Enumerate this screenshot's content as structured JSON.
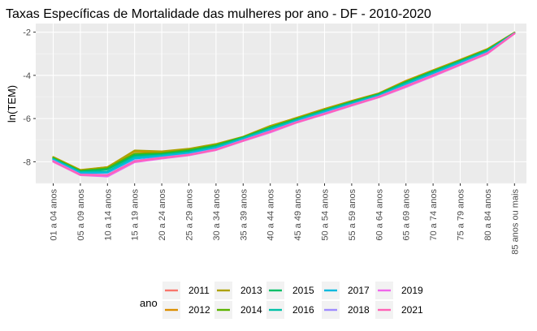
{
  "chart_data": {
    "type": "line",
    "title": "Taxas Específicas de Mortalidade das mulheres por ano - DF - 2010-2020",
    "xlabel": "",
    "ylabel": "ln(TEM)",
    "categories": [
      "01 a 04 anos",
      "05 a 09 anos",
      "10 a 14 anos",
      "15 a 19 anos",
      "20 a 24 anos",
      "25 a 29 anos",
      "30 a 34 anos",
      "35 a 39 anos",
      "40 a 44 anos",
      "45 a 49 anos",
      "50 a 54 anos",
      "55 a 59 anos",
      "60 a 64 anos",
      "65 a 69 anos",
      "70 a 74 anos",
      "75 a 79 anos",
      "80 a 84 anos",
      "85 anos ou mais"
    ],
    "ylim": [
      -9.0,
      -1.6
    ],
    "yticks": [
      -8,
      -6,
      -4,
      -2
    ],
    "grid": true,
    "legend": {
      "title": "ano",
      "position": "bottom"
    },
    "series": [
      {
        "name": "2011",
        "color": "#F8766D",
        "values": [
          -7.85,
          -8.45,
          -8.35,
          -7.7,
          -7.62,
          -7.5,
          -7.25,
          -6.88,
          -6.38,
          -5.98,
          -5.58,
          -5.2,
          -4.85,
          -4.28,
          -3.78,
          -3.3,
          -2.8,
          -2.03
        ]
      },
      {
        "name": "2012",
        "color": "#DB8E00",
        "values": [
          -7.8,
          -8.4,
          -8.25,
          -7.52,
          -7.55,
          -7.42,
          -7.2,
          -6.85,
          -6.35,
          -5.95,
          -5.55,
          -5.18,
          -4.83,
          -4.25,
          -3.76,
          -3.28,
          -2.78,
          -2.02
        ]
      },
      {
        "name": "2013",
        "color": "#AEA200",
        "values": [
          -7.78,
          -8.38,
          -8.25,
          -7.48,
          -7.52,
          -7.4,
          -7.18,
          -6.84,
          -6.34,
          -5.96,
          -5.56,
          -5.19,
          -4.84,
          -4.27,
          -3.77,
          -3.29,
          -2.79,
          -2.02
        ]
      },
      {
        "name": "2014",
        "color": "#5BB300",
        "values": [
          -7.82,
          -8.42,
          -8.3,
          -7.62,
          -7.6,
          -7.45,
          -7.22,
          -6.86,
          -6.4,
          -6.0,
          -5.6,
          -5.22,
          -4.86,
          -4.3,
          -3.8,
          -3.32,
          -2.82,
          -2.03
        ]
      },
      {
        "name": "2015",
        "color": "#00BE67",
        "values": [
          -7.85,
          -8.45,
          -8.35,
          -7.7,
          -7.65,
          -7.5,
          -7.26,
          -6.88,
          -6.42,
          -6.02,
          -5.62,
          -5.24,
          -4.88,
          -4.32,
          -3.82,
          -3.34,
          -2.84,
          -2.04
        ]
      },
      {
        "name": "2016",
        "color": "#00C1A7",
        "values": [
          -7.88,
          -8.48,
          -8.45,
          -7.78,
          -7.7,
          -7.56,
          -7.32,
          -6.92,
          -6.48,
          -6.06,
          -5.66,
          -5.28,
          -4.92,
          -4.38,
          -3.88,
          -3.38,
          -2.88,
          -2.05
        ]
      },
      {
        "name": "2017",
        "color": "#00BADE",
        "values": [
          -7.9,
          -8.52,
          -8.5,
          -7.85,
          -7.74,
          -7.6,
          -7.36,
          -6.96,
          -6.52,
          -6.1,
          -5.7,
          -5.32,
          -4.95,
          -4.42,
          -3.92,
          -3.42,
          -2.92,
          -2.05
        ]
      },
      {
        "name": "2018",
        "color": "#9F8CFF",
        "values": [
          -7.95,
          -8.58,
          -8.6,
          -7.95,
          -7.8,
          -7.66,
          -7.42,
          -7.0,
          -6.58,
          -6.14,
          -5.75,
          -5.36,
          -4.98,
          -4.48,
          -3.98,
          -3.48,
          -2.96,
          -2.06
        ]
      },
      {
        "name": "2019",
        "color": "#EF67EB",
        "values": [
          -8.0,
          -8.62,
          -8.68,
          -8.02,
          -7.85,
          -7.7,
          -7.46,
          -7.04,
          -6.64,
          -6.18,
          -5.8,
          -5.4,
          -5.02,
          -4.54,
          -4.04,
          -3.52,
          -3.0,
          -2.07
        ]
      },
      {
        "name": "2021",
        "color": "#FF63B6",
        "values": [
          -7.98,
          -8.6,
          -8.62,
          -7.98,
          -7.82,
          -7.68,
          -7.44,
          -7.02,
          -6.6,
          -6.16,
          -5.78,
          -5.38,
          -5.0,
          -4.5,
          -4.0,
          -3.5,
          -2.98,
          -2.06
        ]
      }
    ]
  }
}
